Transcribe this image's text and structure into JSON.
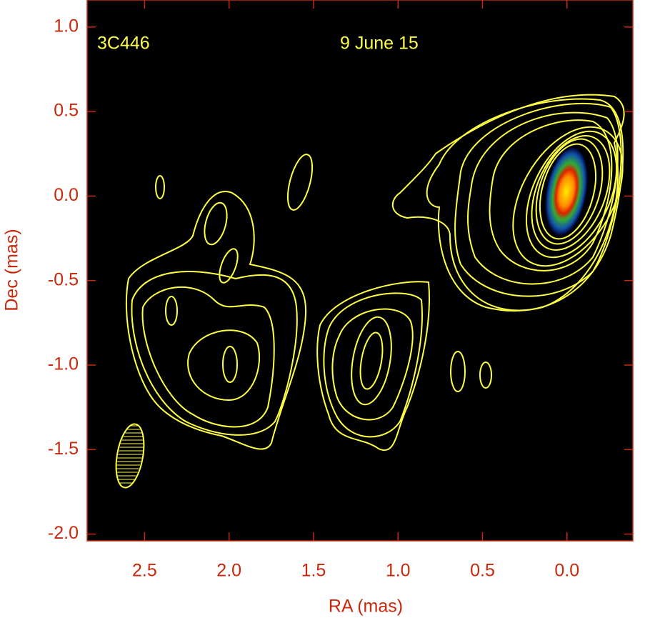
{
  "chart_data": {
    "type": "contour",
    "title": "3C446",
    "subtitle": "9 June 15",
    "xlabel": "RA (mas)",
    "ylabel": "Dec (mas)",
    "xlim": [
      2.84,
      -0.39
    ],
    "ylim": [
      -2.04,
      1.16
    ],
    "xticks": [
      2.5,
      {
        "value": 2,
        "label": "2.0"
      },
      1.5,
      {
        "value": 1,
        "label": "1.0"
      },
      0.5,
      {
        "value": 0,
        "label": "0.0"
      }
    ],
    "yticks": [
      {
        "value": 1,
        "label": "1.0"
      },
      0.5,
      {
        "value": 0,
        "label": "0.0"
      },
      -0.5,
      {
        "value": -1,
        "label": "-1.0"
      },
      -1.5,
      {
        "value": -2,
        "label": "-2.0"
      }
    ],
    "axis_color": "#c8280c",
    "contour_color": "#ffff44",
    "background": "#000000"
  }
}
